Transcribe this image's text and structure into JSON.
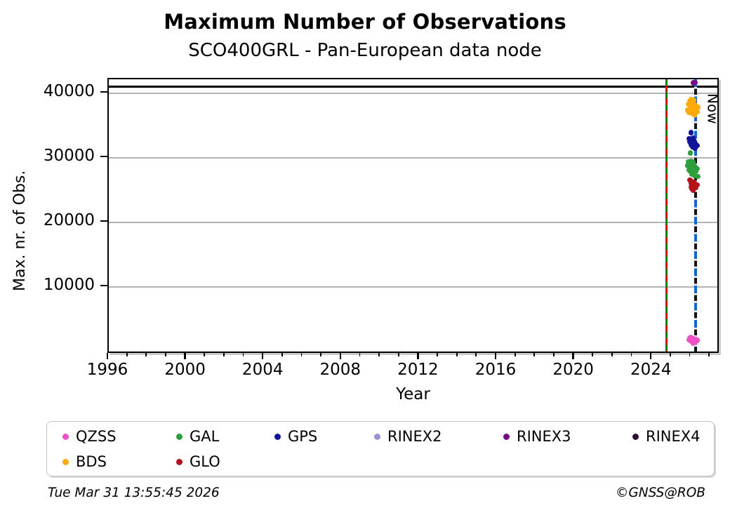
{
  "title": "Maximum Number of Observations",
  "subtitle": "SCO400GRL - Pan-European data node",
  "footer": {
    "timestamp": "Tue Mar 31 13:55:45 2026",
    "credit": "©GNSS@ROB"
  },
  "chart_data": {
    "type": "scatter",
    "title": "Maximum Number of Observations",
    "subtitle": "SCO400GRL - Pan-European data node",
    "xlabel": "Year",
    "ylabel": "Max. nr. of Obs.",
    "xlim": [
      1996,
      2027.5
    ],
    "ylim": [
      0,
      42170
    ],
    "x_ticks": [
      1996,
      2000,
      2004,
      2008,
      2012,
      2016,
      2020,
      2024
    ],
    "x_minor_tick_step": 1,
    "y_ticks": [
      10000,
      20000,
      30000,
      40000
    ],
    "grid": "horizontal-gray-at-y-ticks",
    "legend_position": "below",
    "reference_lines": {
      "max_obs_hline": {
        "value": 41000,
        "color": "#000000"
      },
      "event_vline": {
        "x": 2024.73,
        "style": "green-red-dashed",
        "colors": [
          "#0e7c0e",
          "#cc1414"
        ]
      },
      "now_vline": {
        "x": 2026.25,
        "style": "blue-black-dashed",
        "colors": [
          "#1565d0",
          "#151515"
        ],
        "label": "Now"
      }
    },
    "now_label": "Now",
    "series": [
      {
        "name": "QZSS",
        "color": "#ef52c5",
        "points": [
          [
            2025.9,
            1800
          ],
          [
            2025.95,
            2100
          ],
          [
            2026.0,
            1600
          ],
          [
            2026.0,
            2250
          ],
          [
            2026.05,
            1900
          ],
          [
            2026.1,
            1300
          ],
          [
            2026.12,
            2000
          ],
          [
            2026.15,
            1700
          ],
          [
            2026.2,
            1500
          ],
          [
            2026.25,
            1850
          ],
          [
            2026.32,
            1750
          ]
        ]
      },
      {
        "name": "BDS",
        "color": "#ffaa05",
        "points": [
          [
            2025.82,
            37400
          ],
          [
            2025.88,
            38300
          ],
          [
            2025.9,
            37000
          ],
          [
            2025.95,
            38800
          ],
          [
            2025.97,
            37700
          ],
          [
            2026.0,
            39000
          ],
          [
            2026.02,
            38100
          ],
          [
            2026.05,
            36900
          ],
          [
            2026.08,
            38500
          ],
          [
            2026.1,
            37400
          ],
          [
            2026.12,
            38900
          ],
          [
            2026.15,
            37900
          ],
          [
            2026.18,
            36600
          ],
          [
            2026.2,
            38200
          ],
          [
            2026.25,
            37600
          ],
          [
            2026.3,
            37100
          ],
          [
            2026.35,
            37800
          ]
        ]
      },
      {
        "name": "GAL",
        "color": "#2f9e3c",
        "points": [
          [
            2025.97,
            30750
          ],
          [
            2025.82,
            28800
          ],
          [
            2025.88,
            29400
          ],
          [
            2025.9,
            28100
          ],
          [
            2025.95,
            29200
          ],
          [
            2025.97,
            27900
          ],
          [
            2026.0,
            29500
          ],
          [
            2026.0,
            28500
          ],
          [
            2026.03,
            27500
          ],
          [
            2026.05,
            29100
          ],
          [
            2026.08,
            28200
          ],
          [
            2026.1,
            29350
          ],
          [
            2026.12,
            27800
          ],
          [
            2026.15,
            28900
          ],
          [
            2026.18,
            27300
          ],
          [
            2026.2,
            28600
          ],
          [
            2026.25,
            27900
          ],
          [
            2026.3,
            28300
          ],
          [
            2026.35,
            27100
          ]
        ]
      },
      {
        "name": "GLO",
        "color": "#b5121b",
        "points": [
          [
            2025.95,
            26600
          ],
          [
            2026.0,
            26100
          ],
          [
            2026.0,
            25500
          ],
          [
            2026.03,
            26300
          ],
          [
            2026.05,
            25200
          ],
          [
            2026.08,
            25900
          ],
          [
            2026.1,
            25000
          ],
          [
            2026.12,
            26200
          ],
          [
            2026.15,
            25600
          ],
          [
            2026.2,
            26000
          ],
          [
            2026.25,
            25400
          ],
          [
            2026.3,
            25800
          ]
        ]
      },
      {
        "name": "GPS",
        "color": "#12129b",
        "points": [
          [
            2026.0,
            33900
          ],
          [
            2025.9,
            33000
          ],
          [
            2025.95,
            32500
          ],
          [
            2026.0,
            32900
          ],
          [
            2026.02,
            32000
          ],
          [
            2026.05,
            32600
          ],
          [
            2026.07,
            31700
          ],
          [
            2026.1,
            33100
          ],
          [
            2026.12,
            32200
          ],
          [
            2026.15,
            32700
          ],
          [
            2026.2,
            31500
          ],
          [
            2026.25,
            32100
          ],
          [
            2026.3,
            31900
          ]
        ]
      },
      {
        "name": "RINEX2",
        "color": "#9b90d3",
        "points": []
      },
      {
        "name": "RINEX3",
        "color": "#750c82",
        "points": [
          [
            2026.12,
            41650
          ],
          [
            2026.2,
            41700
          ]
        ]
      },
      {
        "name": "RINEX4",
        "color": "#2d1133",
        "points": []
      }
    ]
  },
  "legend": {
    "items": [
      {
        "label": "QZSS",
        "color": "#ef52c5",
        "col": 0,
        "row": 0
      },
      {
        "label": "GAL",
        "color": "#2f9e3c",
        "col": 1,
        "row": 0
      },
      {
        "label": "GPS",
        "color": "#12129b",
        "col": 2,
        "row": 0
      },
      {
        "label": "RINEX2",
        "color": "#9b90d3",
        "col": 3,
        "row": 0
      },
      {
        "label": "RINEX3",
        "color": "#750c82",
        "col": 4,
        "row": 0
      },
      {
        "label": "RINEX4",
        "color": "#2d1133",
        "col": 5,
        "row": 0
      },
      {
        "label": "BDS",
        "color": "#ffaa05",
        "col": 0,
        "row": 1
      },
      {
        "label": "GLO",
        "color": "#b5121b",
        "col": 1,
        "row": 1
      }
    ]
  }
}
